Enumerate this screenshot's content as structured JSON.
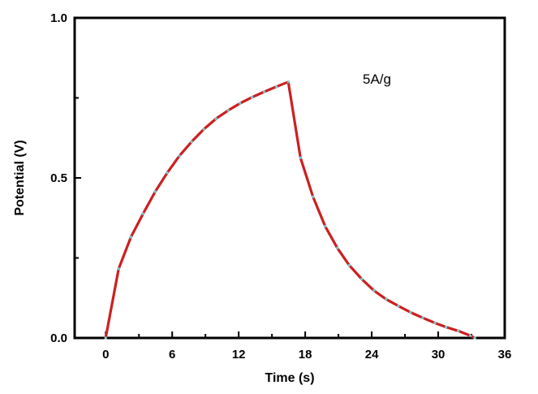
{
  "chart_data": {
    "type": "line",
    "title": "",
    "xlabel": "Time (s)",
    "ylabel": "Potential (V)",
    "xlim": [
      -2.8,
      36
    ],
    "ylim": [
      0,
      1.0
    ],
    "xticks": [
      0,
      6,
      12,
      18,
      24,
      30,
      36
    ],
    "xtick_labels": [
      "0",
      "6",
      "12",
      "18",
      "24",
      "30",
      "36"
    ],
    "xminor": [
      3,
      9,
      15,
      21,
      27,
      33
    ],
    "yticks": [
      0,
      0.5,
      1.0
    ],
    "ytick_labels": [
      "0.0",
      "0.5",
      "1.0"
    ],
    "yminor": [
      0.25,
      0.75
    ],
    "grid": false,
    "annotation": "5A/g",
    "series": [
      {
        "name": "5A/g",
        "color": "#cc1f1f",
        "marker_color": "#7cc8d0",
        "x": [
          0,
          1.17,
          2.27,
          3.37,
          4.47,
          5.55,
          6.65,
          7.75,
          8.85,
          9.95,
          11.05,
          12.12,
          13.2,
          14.3,
          15.4,
          16.47,
          17.57,
          18.7,
          19.8,
          20.9,
          21.97,
          23.1,
          24.2,
          25.3,
          26.4,
          27.5,
          28.6,
          29.7,
          30.7,
          31.8,
          32.9,
          33.3
        ],
        "y": [
          0,
          0.216,
          0.315,
          0.388,
          0.457,
          0.516,
          0.569,
          0.613,
          0.652,
          0.685,
          0.711,
          0.733,
          0.752,
          0.769,
          0.785,
          0.8,
          0.563,
          0.441,
          0.349,
          0.281,
          0.227,
          0.184,
          0.148,
          0.121,
          0.1,
          0.08,
          0.063,
          0.047,
          0.034,
          0.022,
          0.007,
          0
        ]
      }
    ]
  }
}
